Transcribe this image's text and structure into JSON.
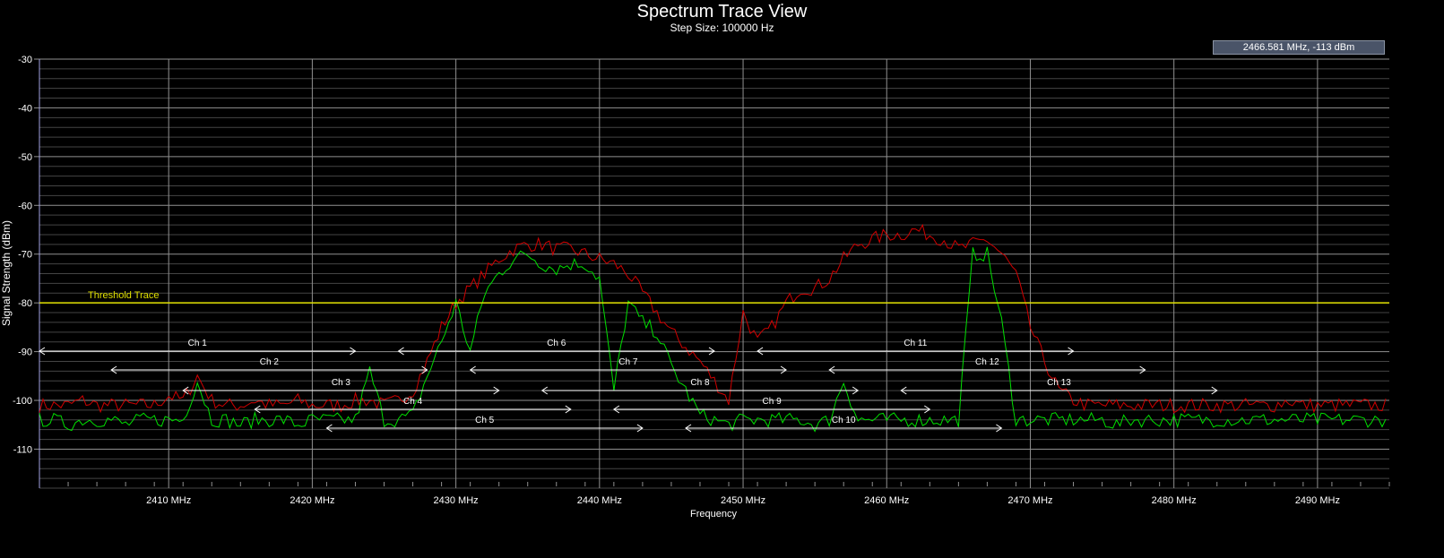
{
  "chart_data": {
    "type": "line",
    "title": "Spectrum Trace View",
    "subtitle": "Step Size: 100000 Hz",
    "xlabel": "Frequency",
    "ylabel": "Signal Strength (dBm)",
    "xlim": [
      2401,
      2495
    ],
    "ylim": [
      -118,
      -30
    ],
    "x_ticks": [
      2410,
      2420,
      2430,
      2440,
      2450,
      2460,
      2470,
      2480,
      2490
    ],
    "x_tick_labels": [
      "2410 MHz",
      "2420 MHz",
      "2430 MHz",
      "2440 MHz",
      "2450 MHz",
      "2460 MHz",
      "2470 MHz",
      "2480 MHz",
      "2490 MHz"
    ],
    "y_ticks": [
      -30,
      -40,
      -50,
      -60,
      -70,
      -80,
      -90,
      -100,
      -110
    ],
    "y_tick_labels": [
      "-30",
      "-40",
      "-50",
      "-60",
      "-70",
      "-80",
      "-90",
      "-100",
      "-110"
    ],
    "grid": true,
    "readout": "2466.581 MHz,   -113 dBm",
    "threshold": {
      "label": "Threshold Trace",
      "value": -80,
      "color": "#e0e000"
    },
    "channels": [
      {
        "label": "Ch 1",
        "center": 2412
      },
      {
        "label": "Ch 2",
        "center": 2417
      },
      {
        "label": "Ch 3",
        "center": 2422
      },
      {
        "label": "Ch 4",
        "center": 2427
      },
      {
        "label": "Ch 5",
        "center": 2432
      },
      {
        "label": "Ch 6",
        "center": 2437
      },
      {
        "label": "Ch 7",
        "center": 2442
      },
      {
        "label": "Ch 8",
        "center": 2447
      },
      {
        "label": "Ch 9",
        "center": 2452
      },
      {
        "label": "Ch 10",
        "center": 2457
      },
      {
        "label": "Ch 11",
        "center": 2462
      },
      {
        "label": "Ch 12",
        "center": 2467
      },
      {
        "label": "Ch 13",
        "center": 2472
      }
    ],
    "channel_width_mhz": 22,
    "series": [
      {
        "color": "#d00000",
        "x_start": 2401,
        "x_step": 1,
        "values": [
          -101,
          -101,
          -101,
          -100,
          -101,
          -101,
          -101,
          -101,
          -101,
          -99,
          -100,
          -95,
          -100,
          -101,
          -101,
          -100,
          -101,
          -101,
          -100,
          -101,
          -101,
          -101,
          -100,
          -100,
          -101,
          -100,
          -98,
          -92,
          -85,
          -80,
          -77,
          -74,
          -71,
          -69,
          -68,
          -68,
          -69,
          -69,
          -70,
          -71,
          -72,
          -74,
          -78,
          -82,
          -86,
          -89,
          -92,
          -96,
          -100,
          -82,
          -88,
          -85,
          -80,
          -77,
          -77,
          -75,
          -71,
          -68,
          -67,
          -66,
          -66,
          -65,
          -66,
          -67,
          -69,
          -68,
          -67,
          -70,
          -74,
          -85,
          -92,
          -98,
          -100,
          -101,
          -101,
          -101,
          -101,
          -101,
          -101,
          -101,
          -101,
          -101,
          -101,
          -101,
          -101,
          -101,
          -101,
          -100,
          -101,
          -101,
          -101,
          -101,
          -101,
          -101,
          -101
        ]
      },
      {
        "color": "#00e000",
        "x_start": 2401,
        "x_step": 1,
        "values": [
          -104,
          -104,
          -105,
          -104,
          -104,
          -104,
          -105,
          -104,
          -104,
          -104,
          -104,
          -96,
          -104,
          -104,
          -105,
          -104,
          -104,
          -104,
          -105,
          -104,
          -104,
          -104,
          -104,
          -94,
          -104,
          -104,
          -103,
          -95,
          -88,
          -80,
          -90,
          -78,
          -74,
          -71,
          -70,
          -72,
          -73,
          -72,
          -72,
          -75,
          -98,
          -80,
          -84,
          -86,
          -93,
          -98,
          -103,
          -104,
          -105,
          -104,
          -104,
          -104,
          -104,
          -104,
          -105,
          -104,
          -96,
          -104,
          -104,
          -104,
          -104,
          -104,
          -104,
          -104,
          -104,
          -70,
          -70,
          -84,
          -104,
          -104,
          -104,
          -104,
          -104,
          -104,
          -104,
          -105,
          -104,
          -104,
          -104,
          -104,
          -104,
          -104,
          -104,
          -104,
          -104,
          -104,
          -104,
          -104,
          -104,
          -104,
          -104,
          -104,
          -104,
          -104,
          -104
        ]
      }
    ]
  }
}
